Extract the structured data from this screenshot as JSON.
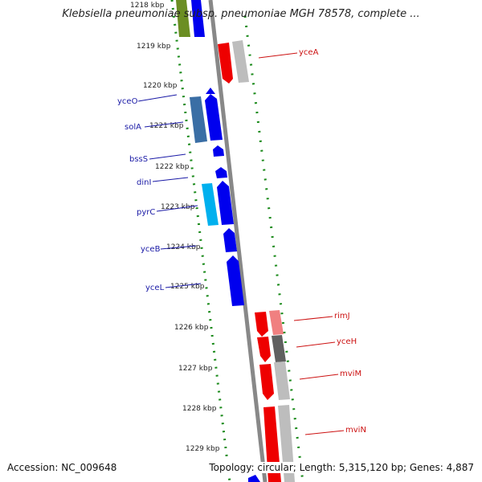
{
  "title": "Klebsiella pneumoniae subsp. pneumoniae MGH 78578, complete ...",
  "accession": "Accession: NC_009648",
  "summary": "Topology: circular; Length: 5,315,120 bp; Genes: 4,887",
  "ticks": [
    "1218 kbp",
    "1219 kbp",
    "1220 kbp",
    "1221 kbp",
    "1222 kbp",
    "1223 kbp",
    "1224 kbp",
    "1225 kbp",
    "1226 kbp",
    "1227 kbp",
    "1228 kbp",
    "1229 kbp"
  ],
  "colors": {
    "forward_gene": "#0000ee",
    "reverse_gene": "#ee0000",
    "forward_label": "#1a1aa6",
    "reverse_label": "#cc1111",
    "backbone": "#888888",
    "tick": "#1a8a1a"
  },
  "forward_labels": [
    "yceO",
    "solA",
    "bssS",
    "dinI",
    "pyrC",
    "yceB",
    "yceL"
  ],
  "reverse_labels": [
    "yceA",
    "rimJ",
    "yceH",
    "mviM",
    "mviN"
  ]
}
